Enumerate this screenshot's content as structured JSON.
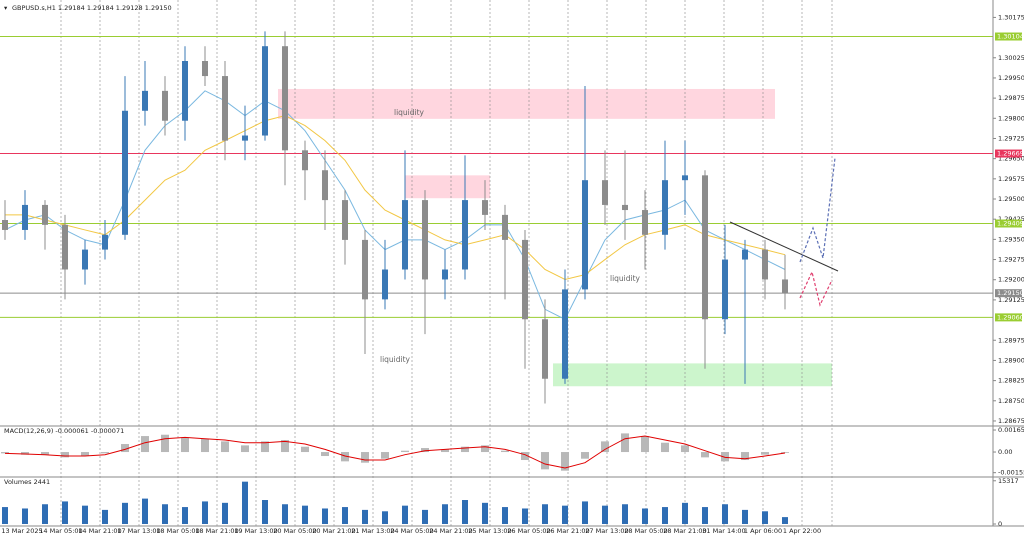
{
  "chart_data": {
    "type": "candlestick",
    "title": "GBPUSD.s,H1  1.29184 1.29184 1.29128 1.29150",
    "x_labels": [
      "13 Mar 2025",
      "14 Mar 05:00",
      "14 Mar 21:00",
      "17 Mar 13:00",
      "18 Mar 05:00",
      "18 Mar 21:00",
      "19 Mar 13:00",
      "20 Mar 05:00",
      "20 Mar 21:00",
      "21 Mar 13:00",
      "24 Mar 05:00",
      "24 Mar 21:00",
      "25 Mar 13:00",
      "26 Mar 05:00",
      "26 Mar 21:00",
      "27 Mar 13:00",
      "28 Mar 05:00",
      "28 Mar 21:00",
      "31 Mar 14:00",
      "1 Apr 06:00",
      "1 Apr 22:00"
    ],
    "candles": {
      "up_color": "#3a78b5",
      "down_color": "#8c8c8c",
      "open": [
        1.29422,
        1.29385,
        1.29478,
        1.29404,
        1.29238,
        1.29312,
        1.29367,
        1.29828,
        1.29902,
        1.29791,
        1.30013,
        1.29957,
        1.29717,
        1.29736,
        1.30068,
        1.29681,
        1.29607,
        1.29496,
        1.29348,
        1.29127,
        1.29238,
        1.29496,
        1.29201,
        1.29238,
        1.29496,
        1.29441,
        1.29348,
        1.29053,
        1.28832,
        1.29164,
        1.2957,
        1.29478,
        1.29459,
        1.29367,
        1.2957,
        1.29588,
        1.29053,
        1.29275,
        1.29312,
        1.29201
      ],
      "high": [
        1.29496,
        1.29533,
        1.29496,
        1.29441,
        1.29348,
        1.29422,
        1.29957,
        1.30013,
        1.29957,
        1.30068,
        1.30068,
        1.30013,
        1.29847,
        1.30123,
        1.30123,
        1.29717,
        1.29681,
        1.29533,
        1.29385,
        1.29348,
        1.29681,
        1.29533,
        1.29312,
        1.29662,
        1.2957,
        1.29478,
        1.29385,
        1.29127,
        1.29238,
        1.2992,
        1.29681,
        1.29681,
        1.29533,
        1.29717,
        1.29717,
        1.29607,
        1.29404,
        1.29348,
        1.29348,
        1.29293
      ],
      "low": [
        1.29348,
        1.29348,
        1.29312,
        1.29127,
        1.29182,
        1.29275,
        1.29348,
        1.29773,
        1.29736,
        1.29717,
        1.2992,
        1.29644,
        1.29644,
        1.29717,
        1.29551,
        1.29496,
        1.29385,
        1.29256,
        1.28924,
        1.2909,
        1.29201,
        1.28998,
        1.29127,
        1.29201,
        1.29385,
        1.29127,
        1.28869,
        1.2874,
        1.28813,
        1.29127,
        1.29404,
        1.29348,
        1.29238,
        1.29312,
        1.29441,
        1.28869,
        1.28998,
        1.28813,
        1.29127,
        1.2909
      ],
      "close": [
        1.29385,
        1.29478,
        1.29404,
        1.29238,
        1.29312,
        1.29367,
        1.29828,
        1.29902,
        1.29791,
        1.30013,
        1.29957,
        1.29717,
        1.29736,
        1.30068,
        1.29681,
        1.29607,
        1.29496,
        1.29348,
        1.29127,
        1.29238,
        1.29496,
        1.29201,
        1.29238,
        1.29496,
        1.29441,
        1.29348,
        1.29053,
        1.28832,
        1.29164,
        1.2957,
        1.29478,
        1.29459,
        1.29367,
        1.2957,
        1.29588,
        1.29053,
        1.29275,
        1.29312,
        1.29201,
        1.2915
      ]
    },
    "ma": [
      {
        "color": "#7ab8e0",
        "values": [
          1.29385,
          1.29422,
          1.29441,
          1.29385,
          1.29348,
          1.2933,
          1.29496,
          1.29681,
          1.29773,
          1.29828,
          1.29902,
          1.29865,
          1.2981,
          1.29865,
          1.29828,
          1.29754,
          1.29644,
          1.29533,
          1.29385,
          1.29312,
          1.29348,
          1.29348,
          1.29312,
          1.29348,
          1.29404,
          1.29404,
          1.29275,
          1.2909,
          1.29053,
          1.29201,
          1.29348,
          1.29422,
          1.29441,
          1.29459,
          1.29496,
          1.29385,
          1.29348,
          1.29312,
          1.29275,
          1.29238
        ]
      },
      {
        "color": "#f2c744",
        "values": [
          1.29441,
          1.29441,
          1.29422,
          1.29404,
          1.29385,
          1.29367,
          1.29422,
          1.29496,
          1.2957,
          1.29607,
          1.29681,
          1.29717,
          1.29754,
          1.29791,
          1.2981,
          1.29773,
          1.29717,
          1.29644,
          1.29533,
          1.29459,
          1.29422,
          1.29385,
          1.29348,
          1.2933,
          1.29348,
          1.29367,
          1.29312,
          1.29238,
          1.29201,
          1.29219,
          1.29275,
          1.2933,
          1.29367,
          1.29385,
          1.29404,
          1.29367,
          1.29348,
          1.2933,
          1.29312,
          1.29293
        ]
      }
    ],
    "ylim": [
      1.2866,
      1.3021
    ],
    "yticks": [
      1.30175,
      1.30025,
      {
        "value": 1.2995,
        "label": "1.29950"
      },
      1.29875,
      {
        "value": 1.298,
        "label": "1.29800"
      },
      1.29725,
      {
        "value": 1.2965,
        "label": "1.29650"
      },
      1.29575,
      {
        "value": 1.295,
        "label": "1.29500"
      },
      1.29425,
      {
        "value": 1.2935,
        "label": "1.29350"
      },
      1.29275,
      {
        "value": 1.292,
        "label": "1.29200"
      },
      1.29125,
      1.28975,
      {
        "value": 1.289,
        "label": "1.28900"
      },
      1.28825,
      {
        "value": 1.2875,
        "label": "1.28750"
      },
      1.28675
    ],
    "levels": [
      {
        "value": 1.30104,
        "color": "#9acd32"
      },
      {
        "value": 1.29669,
        "color": "#e8365d"
      },
      {
        "value": 1.29409,
        "color": "#9acd32"
      },
      {
        "value": 1.2915,
        "label": "1.29150",
        "color": "#8c8c8c"
      },
      {
        "value": 1.2906,
        "label": "1.29060",
        "color": "#9acd32"
      }
    ],
    "zones": [
      {
        "top": 1.29909,
        "bottom": 1.29798,
        "color": "#ffd6df"
      },
      {
        "top": 1.29588,
        "bottom": 1.29503,
        "color": "#ffd6df"
      },
      {
        "top": 1.28889,
        "bottom": 1.28804,
        "color": "#ccf5cc"
      }
    ],
    "annotations": [
      "liquidity",
      "liquidity",
      "liquidity"
    ],
    "macd": {
      "label": "MACD(12,26,9) -0.000061 -0.000071",
      "hist_color": "#b8b8b8",
      "signal_color": "#e00000",
      "histogram": [
        -0.0001,
        -0.0002,
        -0.0002,
        -0.0004,
        -0.0003,
        -0.0001,
        0.0006,
        0.0012,
        0.0013,
        0.0011,
        0.001,
        0.0008,
        0.0005,
        0.0008,
        0.0009,
        0.0004,
        -0.0003,
        -0.0007,
        -0.0008,
        -0.0005,
        0.0001,
        0.0003,
        0.0002,
        0.0004,
        0.0005,
        0.0001,
        -0.0006,
        -0.0013,
        -0.0014,
        -0.0005,
        0.0008,
        0.0014,
        0.0012,
        0.0007,
        0.0005,
        -0.0004,
        -0.0007,
        -0.0006,
        -0.0002,
        -6.1e-05
      ],
      "signal": [
        -0.0001,
        -0.00015,
        -0.0002,
        -0.0003,
        -0.0003,
        -0.0002,
        0.0002,
        0.0007,
        0.001,
        0.0011,
        0.001,
        0.0009,
        0.0007,
        0.0007,
        0.0008,
        0.0006,
        0.0002,
        -0.0003,
        -0.0006,
        -0.0006,
        -0.0002,
        0.0001,
        0.0002,
        0.0003,
        0.0004,
        0.0002,
        -0.0002,
        -0.0009,
        -0.0012,
        -0.0008,
        0.0002,
        0.001,
        0.0012,
        0.0009,
        0.0006,
        0.0001,
        -0.0004,
        -0.0005,
        -0.0003,
        -7.1e-05
      ],
      "ylim": [
        -0.0018,
        0.00188
      ],
      "yticks": [
        0.001653,
        {
          "value": 0,
          "label": "0.00"
        },
        -0.00155
      ]
    },
    "volumes": {
      "label": "Volumes 2441",
      "color": "#2e6db4",
      "values": [
        6000,
        5500,
        7000,
        8000,
        6500,
        5000,
        7500,
        9000,
        7000,
        6000,
        8000,
        7500,
        15000,
        8500,
        7000,
        6500,
        5500,
        6000,
        5000,
        4500,
        6500,
        5000,
        7000,
        8500,
        7500,
        6000,
        5500,
        7000,
        6500,
        8000,
        6500,
        7000,
        5500,
        6000,
        7500,
        6000,
        7000,
        5000,
        4500,
        2441
      ],
      "ylim": [
        0,
        16300
      ],
      "yticks": [
        15317,
        0
      ]
    }
  }
}
